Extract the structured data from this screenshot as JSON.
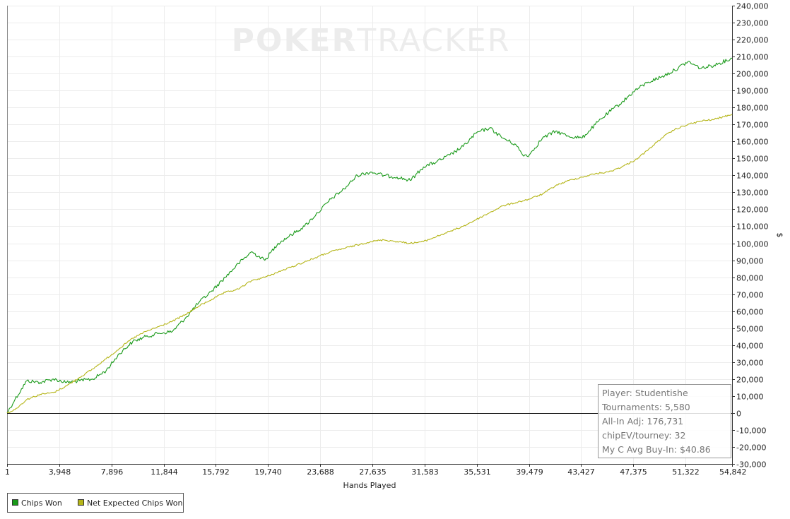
{
  "watermark": {
    "bold": "POKER",
    "light": "TRACKER"
  },
  "chart_data": {
    "type": "line",
    "xlabel": "Hands Played",
    "ylabel": "$",
    "xlim": [
      1,
      54842
    ],
    "ylim": [
      -30000,
      240000
    ],
    "x_ticks": [
      "1",
      "3,948",
      "7,896",
      "11,844",
      "15,792",
      "19,740",
      "23,688",
      "27,635",
      "31,583",
      "35,531",
      "39,479",
      "43,427",
      "47,375",
      "51,322",
      "54,842"
    ],
    "x_tick_values": [
      1,
      3948,
      7896,
      11844,
      15792,
      19740,
      23688,
      27635,
      31583,
      35531,
      39479,
      43427,
      47375,
      51322,
      54842
    ],
    "y_ticks": [
      "240,000",
      "230,000",
      "220,000",
      "210,000",
      "200,000",
      "190,000",
      "180,000",
      "170,000",
      "160,000",
      "150,000",
      "140,000",
      "130,000",
      "120,000",
      "110,000",
      "100,000",
      "90,000",
      "80,000",
      "70,000",
      "60,000",
      "50,000",
      "40,000",
      "30,000",
      "20,000",
      "10,000",
      "0",
      "-10,000",
      "-20,000",
      "-30,000"
    ],
    "y_tick_values": [
      240000,
      230000,
      220000,
      210000,
      200000,
      190000,
      180000,
      170000,
      160000,
      150000,
      140000,
      130000,
      120000,
      110000,
      100000,
      90000,
      80000,
      70000,
      60000,
      50000,
      40000,
      30000,
      20000,
      10000,
      0,
      -10000,
      -20000,
      -30000
    ],
    "grid": true,
    "legend_position": "bottom-left",
    "series": [
      {
        "name": "Chips Won",
        "color": "#1a9a1a",
        "x": [
          1,
          600,
          1500,
          2500,
          3500,
          4500,
          5500,
          6500,
          7500,
          8500,
          9500,
          10500,
          11500,
          12500,
          13500,
          14500,
          15500,
          16500,
          17500,
          18500,
          19500,
          20500,
          21500,
          22500,
          23500,
          24500,
          25500,
          26500,
          27500,
          28500,
          29500,
          30500,
          31500,
          32500,
          33500,
          34500,
          35500,
          36500,
          37500,
          38500,
          39000,
          39500,
          40500,
          41500,
          42500,
          43500,
          44500,
          45500,
          46500,
          47500,
          48500,
          49500,
          50500,
          51500,
          52500,
          53500,
          54842
        ],
        "y": [
          0,
          8000,
          19000,
          18000,
          20000,
          18000,
          19000,
          20000,
          25000,
          35000,
          42000,
          45000,
          47000,
          48000,
          56000,
          65000,
          72000,
          80000,
          88000,
          95000,
          90000,
          100000,
          105000,
          110000,
          118000,
          126000,
          132000,
          140000,
          142000,
          140000,
          139000,
          137000,
          145000,
          148000,
          152000,
          157000,
          165000,
          168000,
          162000,
          158000,
          152000,
          152000,
          162000,
          166000,
          163000,
          162000,
          170000,
          177000,
          183000,
          190000,
          195000,
          198000,
          202000,
          207000,
          203000,
          205000,
          209000
        ]
      },
      {
        "name": "Net Expected Chips Won",
        "color": "#b5b518",
        "x": [
          1,
          600,
          1500,
          2500,
          3500,
          4500,
          5500,
          6500,
          7500,
          8500,
          9500,
          10500,
          11500,
          12500,
          13500,
          14500,
          15500,
          16500,
          17500,
          18500,
          19500,
          20500,
          21500,
          22500,
          23500,
          24500,
          25500,
          26500,
          27500,
          28500,
          29500,
          30500,
          31500,
          32500,
          33500,
          34500,
          35500,
          36500,
          37500,
          38500,
          39500,
          40500,
          41500,
          42500,
          43500,
          44500,
          45500,
          46500,
          47500,
          48500,
          49500,
          50500,
          51500,
          52500,
          53500,
          54842
        ],
        "y": [
          0,
          2000,
          8000,
          11000,
          12000,
          16000,
          21000,
          26000,
          32000,
          38000,
          44000,
          48000,
          51000,
          54000,
          58000,
          63000,
          67000,
          71000,
          73000,
          78000,
          80000,
          83000,
          86000,
          89000,
          92000,
          95000,
          97000,
          99000,
          101000,
          102000,
          101000,
          100000,
          101000,
          104000,
          107000,
          110000,
          114000,
          118000,
          122000,
          124000,
          126000,
          129000,
          134000,
          137000,
          139000,
          141000,
          142000,
          145000,
          149000,
          155000,
          162000,
          167000,
          170000,
          172000,
          173000,
          176000
        ]
      }
    ]
  },
  "info_box": {
    "player": "Player: Studentishe",
    "tournaments": "Tournaments: 5,580",
    "allin_adj": "All-In Adj: 176,731",
    "chipev": "chipEV/tourney: 32",
    "avg_buyin": "My C Avg Buy-In: $40.86"
  }
}
